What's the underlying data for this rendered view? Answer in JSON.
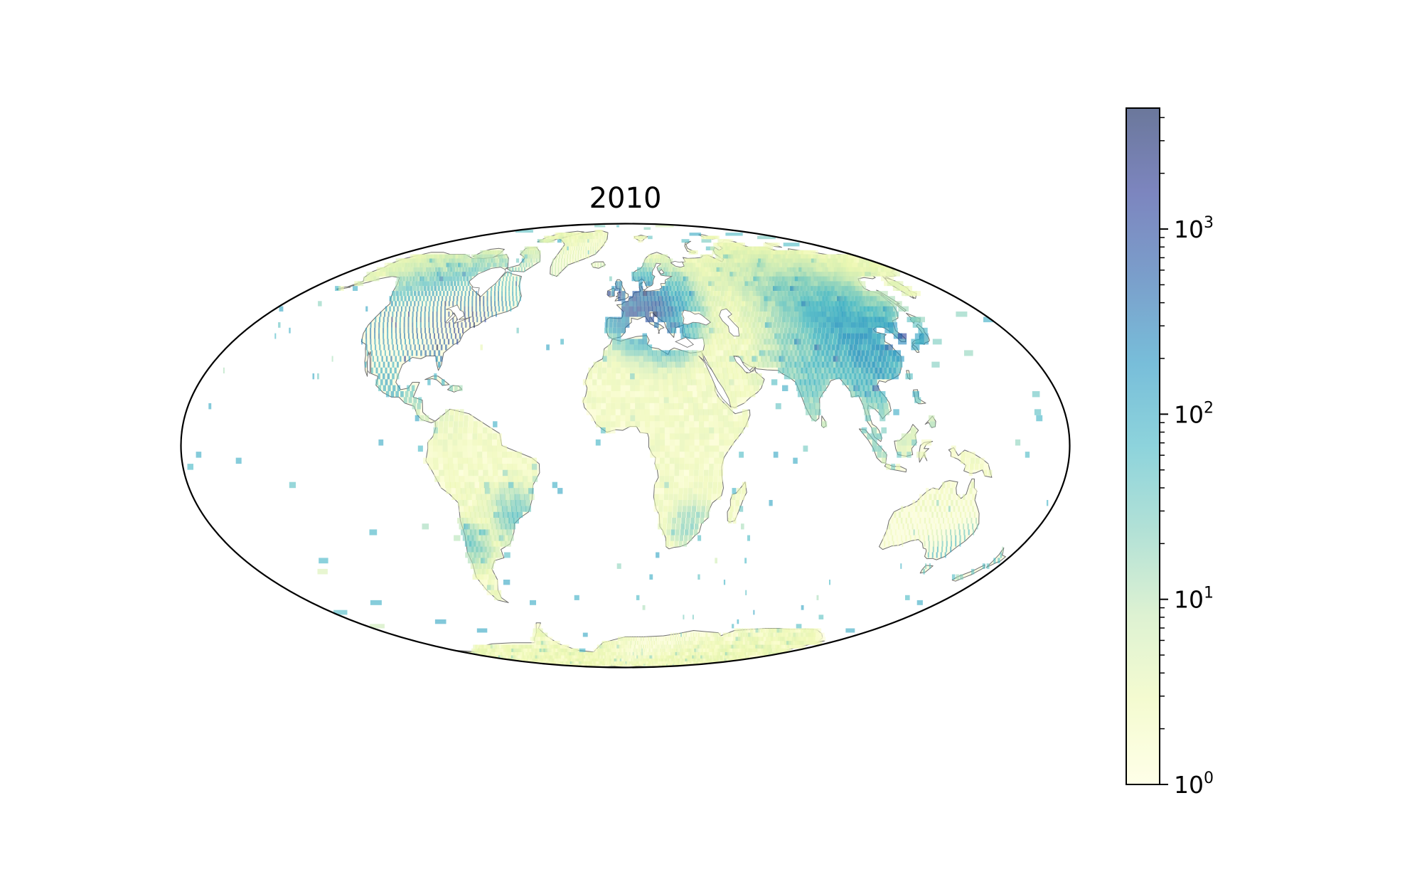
{
  "title": "2010",
  "projection": "mollweide",
  "colormap": [
    "#ffffd9",
    "#edf8b1",
    "#c7e9b4",
    "#7fcdbb",
    "#41b6c4",
    "#1d91c0",
    "#225ea8",
    "#253494",
    "#081d58"
  ],
  "cell_alpha": 0.6,
  "colorbar": {
    "scale": "log",
    "range": [
      1,
      4500
    ],
    "major_ticks": [
      {
        "value": 1,
        "base": "10",
        "exp": "0"
      },
      {
        "value": 10,
        "base": "10",
        "exp": "1"
      },
      {
        "value": 100,
        "base": "10",
        "exp": "2"
      },
      {
        "value": 1000,
        "base": "10",
        "exp": "3"
      }
    ]
  },
  "chart_data": {
    "type": "heatmap",
    "title": "2010",
    "grid_resolution_deg": 2,
    "hotspots": [
      {
        "lon": -77,
        "lat": 39,
        "count": 900,
        "spread": 6
      },
      {
        "lon": -85,
        "lat": 41,
        "count": 500,
        "spread": 8
      },
      {
        "lon": -95,
        "lat": 38,
        "count": 250,
        "spread": 12
      },
      {
        "lon": -120,
        "lat": 40,
        "count": 300,
        "spread": 7
      },
      {
        "lon": -72,
        "lat": 44,
        "count": 300,
        "spread": 5
      },
      {
        "lon": 2,
        "lat": 48,
        "count": 450,
        "spread": 6
      },
      {
        "lon": 10,
        "lat": 47,
        "count": 400,
        "spread": 6
      },
      {
        "lon": -3,
        "lat": 53,
        "count": 400,
        "spread": 3
      },
      {
        "lon": 15,
        "lat": 45,
        "count": 250,
        "spread": 7
      },
      {
        "lon": 20,
        "lat": 40,
        "count": 200,
        "spread": 5
      },
      {
        "lon": 112,
        "lat": 30,
        "count": 150,
        "spread": 10
      },
      {
        "lon": 105,
        "lat": 38,
        "count": 80,
        "spread": 12
      },
      {
        "lon": 127,
        "lat": 37,
        "count": 120,
        "spread": 4
      },
      {
        "lon": 139,
        "lat": 36,
        "count": 100,
        "spread": 4
      },
      {
        "lon": 78,
        "lat": 22,
        "count": 60,
        "spread": 8
      },
      {
        "lon": 151,
        "lat": -33,
        "count": 80,
        "spread": 4
      },
      {
        "lon": 145,
        "lat": -38,
        "count": 80,
        "spread": 4
      },
      {
        "lon": 174,
        "lat": -40,
        "count": 60,
        "spread": 4
      },
      {
        "lon": 28,
        "lat": -26,
        "count": 40,
        "spread": 4
      },
      {
        "lon": -46,
        "lat": -23,
        "count": 50,
        "spread": 5
      },
      {
        "lon": -99,
        "lat": 19,
        "count": 60,
        "spread": 4
      },
      {
        "lon": -157,
        "lat": 21,
        "count": 100,
        "spread": 2
      },
      {
        "lon": -70,
        "lat": -33,
        "count": 40,
        "spread": 4
      },
      {
        "lon": 101,
        "lat": 3,
        "count": 40,
        "spread": 5
      },
      {
        "lon": 121,
        "lat": 14,
        "count": 40,
        "spread": 4
      }
    ]
  }
}
